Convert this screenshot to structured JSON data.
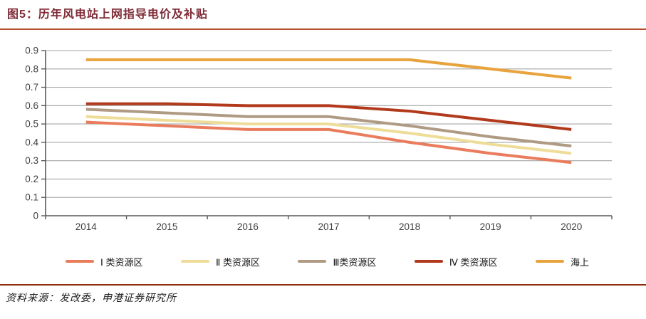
{
  "header": {
    "title": "图5：历年风电站上网指导电价及补贴"
  },
  "footer": {
    "source": "资料来源：发改委，申港证券研究所"
  },
  "colors": {
    "title_text": "#7E2B36",
    "title_rule": "#B5502B",
    "footer_rule": "#8F2D0E",
    "gridline": "#A6A6A6",
    "axis": "#595959",
    "tick_label": "#3f3f3f"
  },
  "chart_data": {
    "type": "line",
    "title": "历年风电站上网指导电价及补贴",
    "categories": [
      "2014",
      "2015",
      "2016",
      "2017",
      "2018",
      "2019",
      "2020"
    ],
    "series": [
      {
        "name": "Ⅰ 类资源区",
        "color": "#E97C5C",
        "values": [
          0.51,
          0.49,
          0.47,
          0.47,
          0.4,
          0.34,
          0.29
        ]
      },
      {
        "name": "Ⅱ 类资源区",
        "color": "#EEDD99",
        "values": [
          0.54,
          0.52,
          0.5,
          0.5,
          0.45,
          0.39,
          0.34
        ]
      },
      {
        "name": "Ⅲ类资源区",
        "color": "#AF9B84",
        "values": [
          0.58,
          0.56,
          0.54,
          0.54,
          0.49,
          0.43,
          0.38
        ]
      },
      {
        "name": "Ⅳ 类资源区",
        "color": "#B23A1C",
        "values": [
          0.61,
          0.61,
          0.6,
          0.6,
          0.57,
          0.52,
          0.47
        ]
      },
      {
        "name": "海上",
        "color": "#E8A33D",
        "values": [
          0.85,
          0.85,
          0.85,
          0.85,
          0.85,
          0.8,
          0.75
        ]
      }
    ],
    "xlabel": "",
    "ylabel": "",
    "ylim": [
      0,
      0.9
    ],
    "y_ticks": [
      "0",
      "0.1",
      "0.2",
      "0.3",
      "0.4",
      "0.5",
      "0.6",
      "0.7",
      "0.8",
      "0.9"
    ],
    "grid": true,
    "legend_position": "bottom"
  }
}
